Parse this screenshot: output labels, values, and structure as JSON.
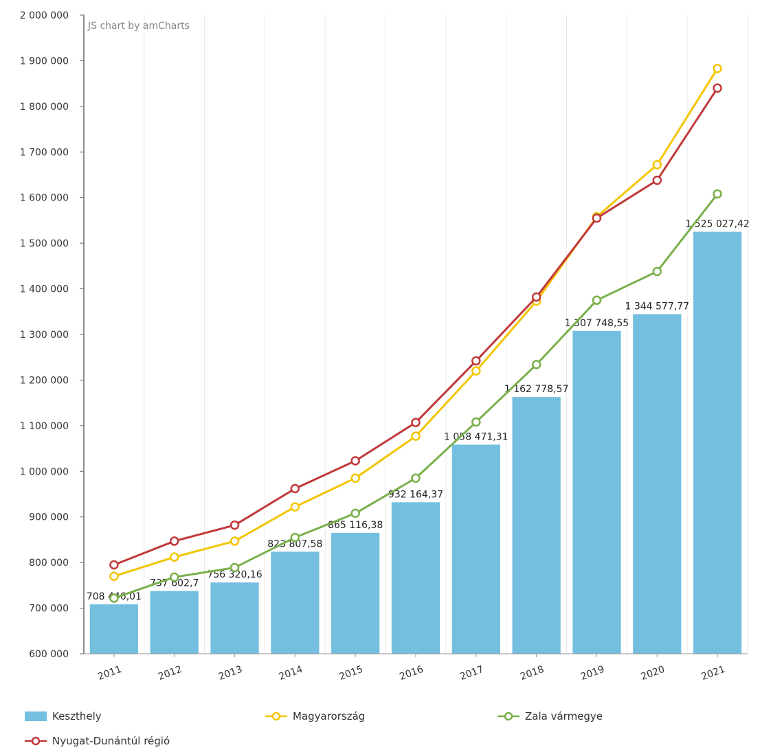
{
  "credit": "JS chart by amCharts",
  "chart_data": {
    "type": "bar",
    "categories": [
      "2011",
      "2012",
      "2013",
      "2014",
      "2015",
      "2016",
      "2017",
      "2018",
      "2019",
      "2020",
      "2021"
    ],
    "y_ticks": [
      "600 000",
      "700 000",
      "800 000",
      "900 000",
      "1 000 000",
      "1 100 000",
      "1 200 000",
      "1 300 000",
      "1 400 000",
      "1 500 000",
      "1 600 000",
      "1 700 000",
      "1 800 000",
      "1 900 000",
      "2 000 000"
    ],
    "ylim": [
      600000,
      2000000
    ],
    "grid": "vertical",
    "legend_position": "bottom",
    "series": [
      {
        "name": "Keszthely",
        "kind": "bar",
        "color": "#74bfe0",
        "values": [
          708446.01,
          737602.7,
          756320.16,
          823807.58,
          865116.38,
          932164.37,
          1058471.31,
          1162778.57,
          1307748.55,
          1344577.77,
          1525027.42
        ],
        "labels": [
          "708 446,01",
          "737 602,7",
          "756 320,16",
          "823 807,58",
          "865 116,38",
          "932 164,37",
          "1 058 471,31",
          "1 162 778,57",
          "1 307 748,55",
          "1 344 577,77",
          "1 525 027,42"
        ]
      },
      {
        "name": "Magyarország",
        "kind": "line",
        "color": "#f2c500",
        "values": [
          770000,
          812000,
          847000,
          922000,
          985000,
          1077000,
          1220000,
          1373000,
          1558000,
          1672000,
          1883000
        ]
      },
      {
        "name": "Zala vármegye",
        "kind": "line",
        "color": "#78b04a",
        "values": [
          722000,
          768000,
          789000,
          855000,
          908000,
          985000,
          1108000,
          1234000,
          1375000,
          1438000,
          1608000
        ]
      },
      {
        "name": "Nyugat-Dunántúl régió",
        "kind": "line",
        "color": "#c0383a",
        "values": [
          795000,
          847000,
          882000,
          962000,
          1023000,
          1107000,
          1242000,
          1382000,
          1555000,
          1638000,
          1840000
        ]
      }
    ]
  }
}
